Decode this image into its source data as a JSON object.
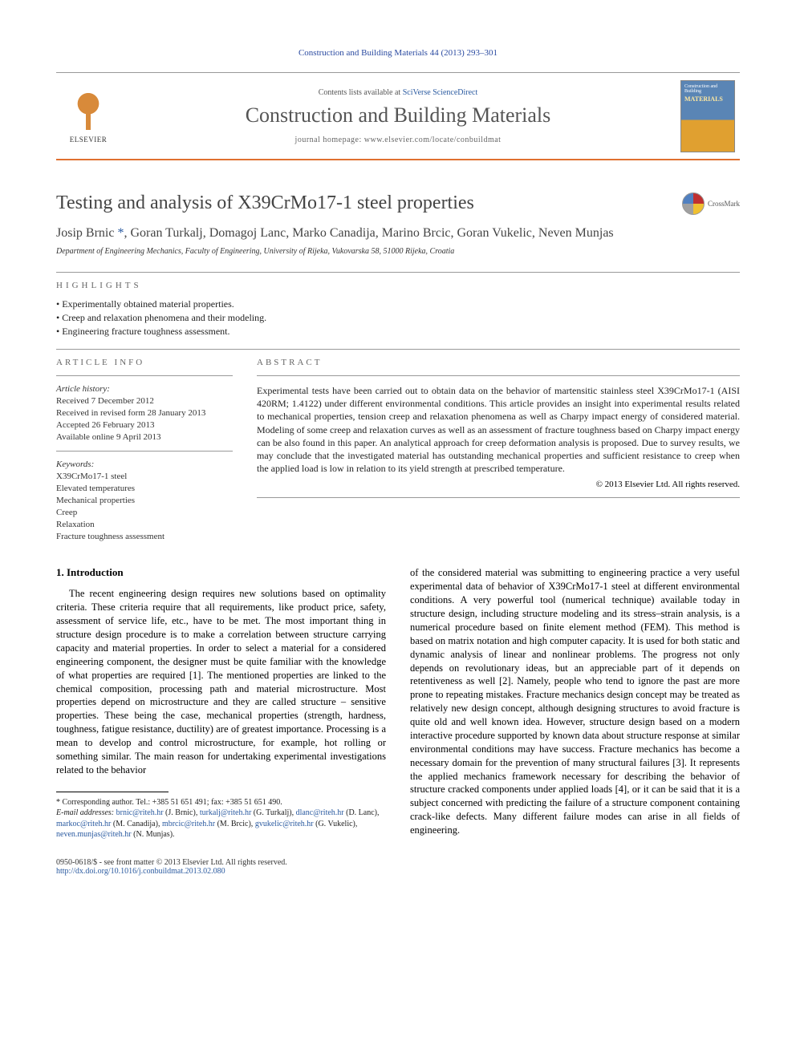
{
  "journal_ref": "Construction and Building Materials 44 (2013) 293–301",
  "header": {
    "contents_prefix": "Contents lists available at ",
    "contents_link": "SciVerse ScienceDirect",
    "journal_title": "Construction and Building Materials",
    "homepage": "journal homepage: www.elsevier.com/locate/conbuildmat",
    "elsevier": "ELSEVIER",
    "cover_line1": "Construction and Building",
    "cover_line2": "MATERIALS"
  },
  "article": {
    "title": "Testing and analysis of X39CrMo17-1 steel properties",
    "crossmark": "CrossMark",
    "authors_html": "Josip Brnic *, Goran Turkalj, Domagoj Lanc, Marko Canadija, Marino Brcic, Goran Vukelic, Neven Munjas",
    "affiliation": "Department of Engineering Mechanics, Faculty of Engineering, University of Rijeka, Vukovarska 58, 51000 Rijeka, Croatia"
  },
  "highlights": {
    "label": "HIGHLIGHTS",
    "items": [
      "Experimentally obtained material properties.",
      "Creep and relaxation phenomena and their modeling.",
      "Engineering fracture toughness assessment."
    ]
  },
  "article_info": {
    "label": "ARTICLE INFO",
    "history_head": "Article history:",
    "history": [
      "Received 7 December 2012",
      "Received in revised form 28 January 2013",
      "Accepted 26 February 2013",
      "Available online 9 April 2013"
    ],
    "keywords_head": "Keywords:",
    "keywords": [
      "X39CrMo17-1 steel",
      "Elevated temperatures",
      "Mechanical properties",
      "Creep",
      "Relaxation",
      "Fracture toughness assessment"
    ]
  },
  "abstract": {
    "label": "ABSTRACT",
    "text": "Experimental tests have been carried out to obtain data on the behavior of martensitic stainless steel X39CrMo17-1 (AISI 420RM; 1.4122) under different environmental conditions. This article provides an insight into experimental results related to mechanical properties, tension creep and relaxation phenomena as well as Charpy impact energy of considered material. Modeling of some creep and relaxation curves as well as an assessment of fracture toughness based on Charpy impact energy can be also found in this paper. An analytical approach for creep deformation analysis is proposed. Due to survey results, we may conclude that the investigated material has outstanding mechanical properties and sufficient resistance to creep when the applied load is low in relation to its yield strength at prescribed temperature.",
    "copyright": "© 2013 Elsevier Ltd. All rights reserved."
  },
  "body": {
    "heading": "1. Introduction",
    "col1": "The recent engineering design requires new solutions based on optimality criteria. These criteria require that all requirements, like product price, safety, assessment of service life, etc., have to be met. The most important thing in structure design procedure is to make a correlation between structure carrying capacity and material properties. In order to select a material for a considered engineering component, the designer must be quite familiar with the knowledge of what properties are required [1]. The mentioned properties are linked to the chemical composition, processing path and material microstructure. Most properties depend on microstructure and they are called structure – sensitive properties. These being the case, mechanical properties (strength, hardness, toughness, fatigue resistance, ductility) are of greatest importance. Processing is a mean to develop and control microstructure, for example, hot rolling or something similar. The main reason for undertaking experimental investigations related to the behavior",
    "col2": "of the considered material was submitting to engineering practice a very useful experimental data of behavior of X39CrMo17-1 steel at different environmental conditions. A very powerful tool (numerical technique) available today in structure design, including structure modeling and its stress–strain analysis, is a numerical procedure based on finite element method (FEM). This method is based on matrix notation and high computer capacity. It is used for both static and dynamic analysis of linear and nonlinear problems. The progress not only depends on revolutionary ideas, but an appreciable part of it depends on retentiveness as well [2]. Namely, people who tend to ignore the past are more prone to repeating mistakes. Fracture mechanics design concept may be treated as relatively new design concept, although designing structures to avoid fracture is quite old and well known idea. However, structure design based on a modern interactive procedure supported by known data about structure response at similar environmental conditions may have success. Fracture mechanics has become a necessary domain for the prevention of many structural failures [3]. It represents the applied mechanics framework necessary for describing the behavior of structure cracked components under applied loads [4], or it can be said that it is a subject concerned with predicting the failure of a structure component containing crack-like defects. Many different failure modes can arise in all fields of engineering."
  },
  "footnote": {
    "corr": "* Corresponding author. Tel.: +385 51 651 491; fax: +385 51 651 490.",
    "emails_label": "E-mail addresses: ",
    "emails": "brnic@riteh.hr (J. Brnic), turkalj@riteh.hr (G. Turkalj), dlanc@riteh.hr (D. Lanc), markoc@riteh.hr (M. Canadija), mbrcic@riteh.hr (M. Brcic), gvukelic@riteh.hr (G. Vukelic), neven.munjas@riteh.hr (N. Munjas)."
  },
  "footer": {
    "left1": "0950-0618/$ - see front matter © 2013 Elsevier Ltd. All rights reserved.",
    "left2": "http://dx.doi.org/10.1016/j.conbuildmat.2013.02.080"
  },
  "colors": {
    "link": "#2a5aa0",
    "rule_orange": "#e07030",
    "text_gray": "#555"
  }
}
